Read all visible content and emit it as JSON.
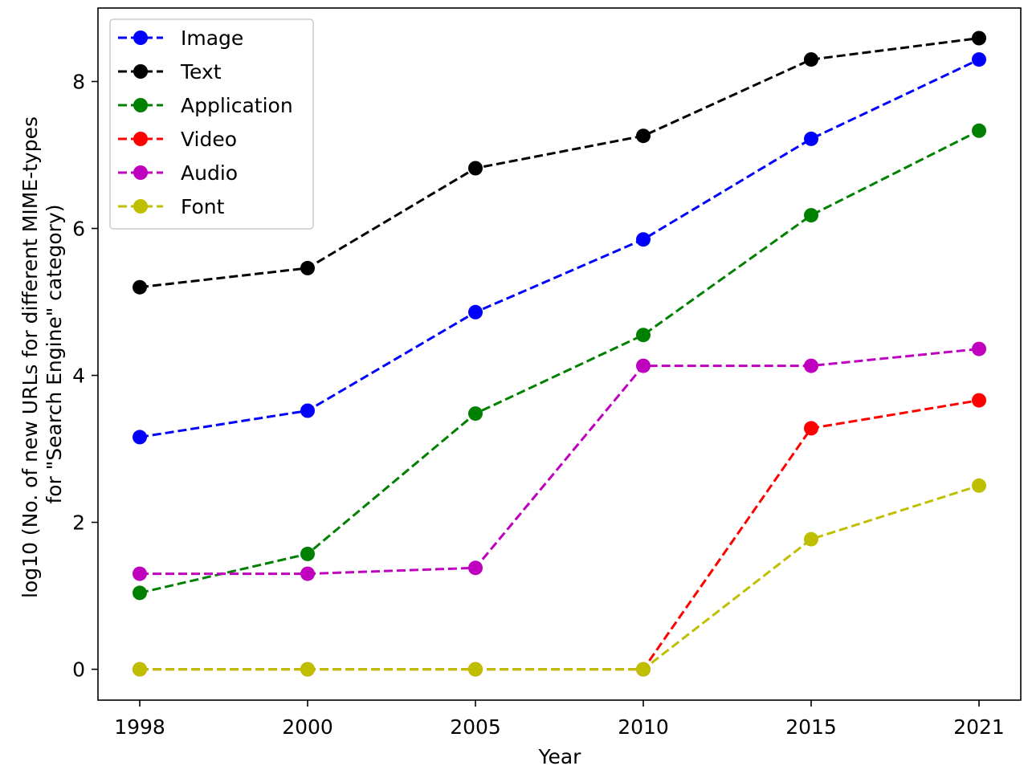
{
  "chart_data": {
    "type": "line",
    "title": "",
    "xlabel": "Year",
    "ylabel_lines": [
      "log10 (No. of new URLs for different MIME-types",
      "for \"Search Engine\" category)"
    ],
    "categories": [
      "1998",
      "2000",
      "2005",
      "2010",
      "2015",
      "2021"
    ],
    "ylim": [
      -0.42,
      9.0
    ],
    "yticks": [
      0,
      2,
      4,
      6,
      8
    ],
    "grid": false,
    "legend_location": "top-left",
    "line_style": "dashed",
    "marker": "circle",
    "series": [
      {
        "name": "Image",
        "color": "#0000ff",
        "values": [
          3.16,
          3.52,
          4.86,
          5.85,
          7.22,
          8.3
        ]
      },
      {
        "name": "Text",
        "color": "#000000",
        "values": [
          5.2,
          5.46,
          6.82,
          7.26,
          8.3,
          8.59
        ]
      },
      {
        "name": "Application",
        "color": "#008000",
        "values": [
          1.04,
          1.57,
          3.48,
          4.55,
          6.18,
          7.33
        ]
      },
      {
        "name": "Video",
        "color": "#ff0000",
        "values": [
          0.0,
          0.0,
          0.0,
          0.0,
          3.28,
          3.66
        ]
      },
      {
        "name": "Audio",
        "color": "#bf00bf",
        "values": [
          1.3,
          1.3,
          1.38,
          4.13,
          4.13,
          4.36
        ]
      },
      {
        "name": "Font",
        "color": "#bfbf00",
        "values": [
          0.0,
          0.0,
          0.0,
          0.0,
          1.77,
          2.5
        ]
      }
    ]
  }
}
